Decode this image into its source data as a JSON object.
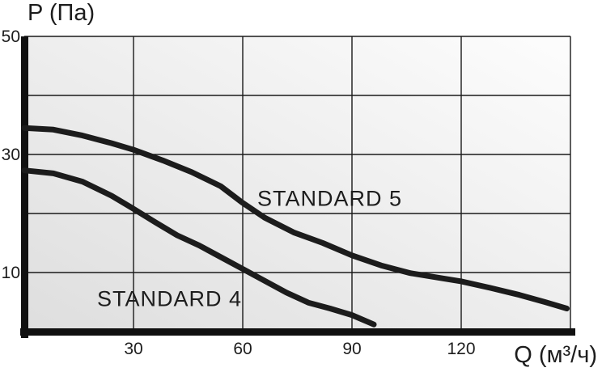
{
  "chart_data": {
    "type": "line",
    "title": "",
    "ylabel": "P (Па)",
    "xlabel": "Q (м³/ч)",
    "xlim": [
      0,
      150
    ],
    "ylim": [
      0,
      50
    ],
    "x_ticks": [
      30,
      60,
      90,
      120
    ],
    "y_ticks": [
      10,
      30,
      50
    ],
    "x_grid": [
      30,
      60,
      90,
      120,
      150
    ],
    "y_grid": [
      10,
      20,
      30,
      40,
      50
    ],
    "grid_on": true,
    "legend": "inline-curve-labels",
    "colors": {
      "curve": "#1c1c1c",
      "grid": "#1a1a1a",
      "axis": "#101010",
      "text": "#1d1d1d",
      "plot_bg_dark": "#dedede",
      "plot_bg_light": "#fdfdfd"
    },
    "series": [
      {
        "name": "STANDARD 5",
        "label": {
          "x": 64,
          "y": 21.3
        },
        "points": [
          [
            0,
            34.5
          ],
          [
            8,
            34.2
          ],
          [
            16,
            33.2
          ],
          [
            24,
            31.9
          ],
          [
            30,
            30.8
          ],
          [
            38,
            29.0
          ],
          [
            46,
            27.0
          ],
          [
            54,
            24.6
          ],
          [
            60,
            21.8
          ],
          [
            66,
            19.3
          ],
          [
            74,
            16.8
          ],
          [
            82,
            15.0
          ],
          [
            90,
            12.9
          ],
          [
            98,
            11.2
          ],
          [
            106,
            9.9
          ],
          [
            114,
            9.1
          ],
          [
            120,
            8.5
          ],
          [
            128,
            7.4
          ],
          [
            136,
            6.2
          ],
          [
            143,
            5.0
          ],
          [
            149,
            3.9
          ]
        ]
      },
      {
        "name": "STANDARD 4",
        "label": {
          "x": 20,
          "y": 4.3
        },
        "points": [
          [
            0,
            27.3
          ],
          [
            8,
            26.8
          ],
          [
            16,
            25.4
          ],
          [
            24,
            23.0
          ],
          [
            30,
            20.8
          ],
          [
            36,
            18.5
          ],
          [
            42,
            16.3
          ],
          [
            48,
            14.6
          ],
          [
            54,
            12.6
          ],
          [
            60,
            10.6
          ],
          [
            66,
            8.6
          ],
          [
            72,
            6.6
          ],
          [
            78,
            4.9
          ],
          [
            84,
            3.9
          ],
          [
            90,
            2.8
          ],
          [
            96,
            1.2
          ]
        ]
      }
    ]
  }
}
